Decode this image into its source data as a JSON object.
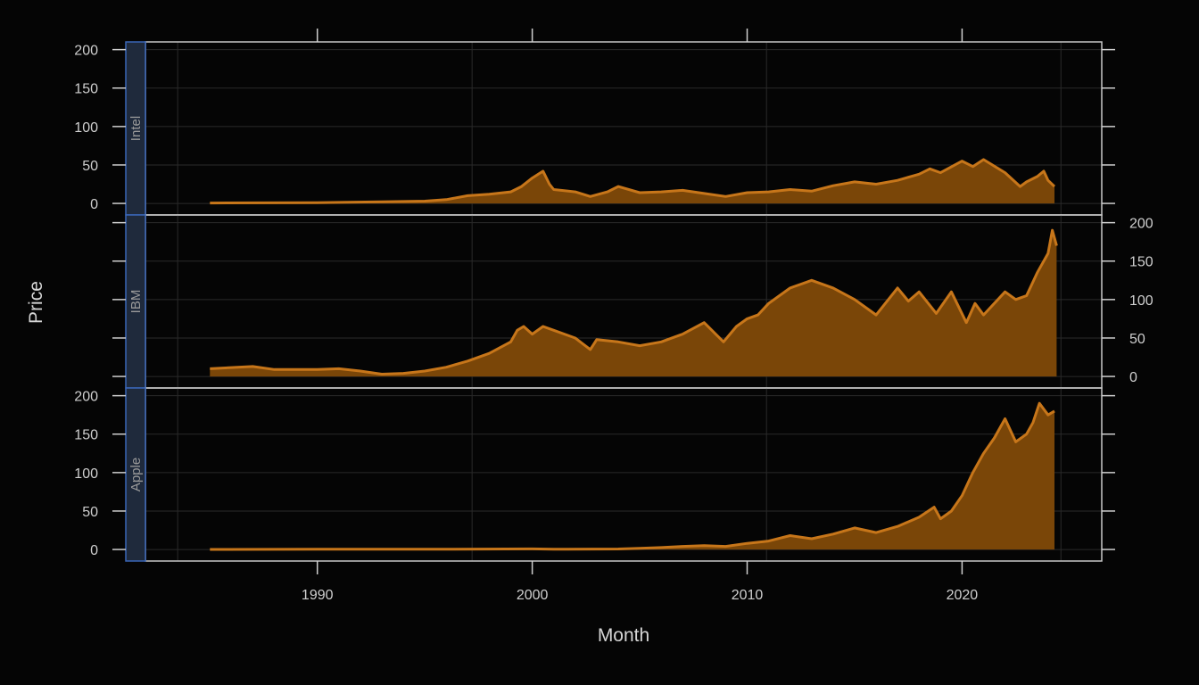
{
  "chart_data": {
    "type": "area",
    "xlabel": "Month",
    "ylabel": "Price",
    "xlim": [
      1982.0,
      2026.5
    ],
    "ylim": [
      -15,
      210
    ],
    "x_ticks": [
      1990,
      2000,
      2010,
      2020
    ],
    "y_ticks": [
      0,
      50,
      100,
      150,
      200
    ],
    "grid": true,
    "colors": {
      "background": "#050505",
      "panel_border": "#c8c8c8",
      "strip_fill": "#1f2a3c",
      "strip_border": "#3a66b8",
      "line": "#c7761a",
      "area": "#7a4608",
      "grid": "#2a2a2a",
      "tick": "#cfcfcf"
    },
    "panels": [
      {
        "name": "Intel",
        "points": [
          [
            1985.0,
            0.5
          ],
          [
            1990.0,
            1
          ],
          [
            1993.0,
            2
          ],
          [
            1995.0,
            3
          ],
          [
            1996.0,
            5
          ],
          [
            1997.0,
            10
          ],
          [
            1998.0,
            12
          ],
          [
            1999.0,
            15
          ],
          [
            1999.5,
            22
          ],
          [
            2000.0,
            33
          ],
          [
            2000.5,
            42
          ],
          [
            2000.8,
            25
          ],
          [
            2001.0,
            18
          ],
          [
            2002.0,
            15
          ],
          [
            2002.7,
            9
          ],
          [
            2003.5,
            15
          ],
          [
            2004.0,
            22
          ],
          [
            2005.0,
            14
          ],
          [
            2006.0,
            15
          ],
          [
            2007.0,
            17
          ],
          [
            2008.0,
            13
          ],
          [
            2009.0,
            9
          ],
          [
            2010.0,
            14
          ],
          [
            2011.0,
            15
          ],
          [
            2012.0,
            18
          ],
          [
            2013.0,
            16
          ],
          [
            2014.0,
            23
          ],
          [
            2015.0,
            28
          ],
          [
            2016.0,
            25
          ],
          [
            2017.0,
            30
          ],
          [
            2018.0,
            38
          ],
          [
            2018.5,
            45
          ],
          [
            2019.0,
            40
          ],
          [
            2020.0,
            55
          ],
          [
            2020.5,
            48
          ],
          [
            2021.0,
            57
          ],
          [
            2022.0,
            40
          ],
          [
            2022.7,
            22
          ],
          [
            2023.0,
            28
          ],
          [
            2023.5,
            35
          ],
          [
            2023.8,
            42
          ],
          [
            2024.0,
            30
          ],
          [
            2024.3,
            22
          ]
        ]
      },
      {
        "name": "IBM",
        "points": [
          [
            1985.0,
            10
          ],
          [
            1987.0,
            13
          ],
          [
            1988.0,
            9
          ],
          [
            1990.0,
            9
          ],
          [
            1991.0,
            10
          ],
          [
            1992.0,
            7
          ],
          [
            1993.0,
            3
          ],
          [
            1994.0,
            4
          ],
          [
            1995.0,
            7
          ],
          [
            1996.0,
            12
          ],
          [
            1997.0,
            20
          ],
          [
            1998.0,
            30
          ],
          [
            1999.0,
            45
          ],
          [
            1999.3,
            60
          ],
          [
            1999.6,
            65
          ],
          [
            2000.0,
            55
          ],
          [
            2000.5,
            65
          ],
          [
            2001.0,
            60
          ],
          [
            2002.0,
            50
          ],
          [
            2002.7,
            35
          ],
          [
            2003.0,
            48
          ],
          [
            2004.0,
            45
          ],
          [
            2005.0,
            40
          ],
          [
            2006.0,
            45
          ],
          [
            2007.0,
            55
          ],
          [
            2008.0,
            70
          ],
          [
            2008.9,
            45
          ],
          [
            2009.5,
            65
          ],
          [
            2010.0,
            75
          ],
          [
            2010.5,
            80
          ],
          [
            2011.0,
            95
          ],
          [
            2012.0,
            115
          ],
          [
            2012.5,
            120
          ],
          [
            2013.0,
            125
          ],
          [
            2014.0,
            115
          ],
          [
            2015.0,
            100
          ],
          [
            2016.0,
            80
          ],
          [
            2017.0,
            115
          ],
          [
            2017.5,
            98
          ],
          [
            2018.0,
            110
          ],
          [
            2018.8,
            82
          ],
          [
            2019.5,
            110
          ],
          [
            2020.2,
            70
          ],
          [
            2020.6,
            95
          ],
          [
            2021.0,
            80
          ],
          [
            2022.0,
            110
          ],
          [
            2022.5,
            100
          ],
          [
            2023.0,
            105
          ],
          [
            2023.5,
            135
          ],
          [
            2024.0,
            160
          ],
          [
            2024.2,
            190
          ],
          [
            2024.4,
            170
          ]
        ]
      },
      {
        "name": "Apple",
        "points": [
          [
            1985.0,
            0.1
          ],
          [
            1990.0,
            0.3
          ],
          [
            1995.0,
            0.3
          ],
          [
            2000.0,
            0.8
          ],
          [
            2001.0,
            0.3
          ],
          [
            2004.0,
            0.6
          ],
          [
            2005.0,
            1.5
          ],
          [
            2006.0,
            2.5
          ],
          [
            2007.0,
            4
          ],
          [
            2008.0,
            5
          ],
          [
            2009.0,
            4
          ],
          [
            2010.0,
            8
          ],
          [
            2011.0,
            11
          ],
          [
            2012.0,
            18
          ],
          [
            2013.0,
            14
          ],
          [
            2014.0,
            20
          ],
          [
            2015.0,
            28
          ],
          [
            2016.0,
            22
          ],
          [
            2017.0,
            30
          ],
          [
            2018.0,
            42
          ],
          [
            2018.7,
            55
          ],
          [
            2019.0,
            40
          ],
          [
            2019.5,
            50
          ],
          [
            2020.0,
            70
          ],
          [
            2020.5,
            100
          ],
          [
            2021.0,
            125
          ],
          [
            2021.5,
            145
          ],
          [
            2022.0,
            170
          ],
          [
            2022.5,
            140
          ],
          [
            2023.0,
            150
          ],
          [
            2023.3,
            165
          ],
          [
            2023.6,
            190
          ],
          [
            2024.0,
            175
          ],
          [
            2024.3,
            180
          ]
        ]
      }
    ]
  }
}
